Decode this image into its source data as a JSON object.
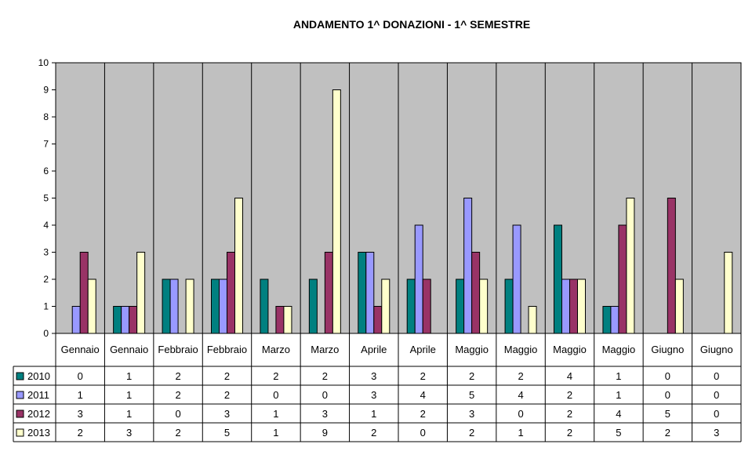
{
  "chart_data": {
    "type": "bar",
    "title": "ANDAMENTO 1^ DONAZIONI  -  1^ SEMESTRE",
    "categories": [
      "Gennaio",
      "Gennaio",
      "Febbraio",
      "Febbraio",
      "Marzo",
      "Marzo",
      "Aprile",
      "Aprile",
      "Maggio",
      "Maggio",
      "Maggio",
      "Maggio",
      "Giugno",
      "Giugno"
    ],
    "series": [
      {
        "name": "2010",
        "color": "#008080",
        "values": [
          0,
          1,
          2,
          2,
          2,
          2,
          3,
          2,
          2,
          2,
          4,
          1,
          0,
          0
        ]
      },
      {
        "name": "2011",
        "color": "#9999FF",
        "values": [
          1,
          1,
          2,
          2,
          0,
          0,
          3,
          4,
          5,
          4,
          2,
          1,
          0,
          0
        ]
      },
      {
        "name": "2012",
        "color": "#993366",
        "values": [
          3,
          1,
          0,
          3,
          1,
          3,
          1,
          2,
          3,
          0,
          2,
          4,
          5,
          0
        ]
      },
      {
        "name": "2013",
        "color": "#FFFFCC",
        "values": [
          2,
          3,
          2,
          5,
          1,
          9,
          2,
          0,
          2,
          1,
          2,
          5,
          2,
          3
        ]
      }
    ],
    "ylim": [
      0,
      10
    ],
    "yticks": [
      0,
      1,
      2,
      3,
      4,
      5,
      6,
      7,
      8,
      9,
      10
    ],
    "grid": "vertical-category",
    "plot_background": "#C0C0C0",
    "legend": "data-table-bottom"
  }
}
